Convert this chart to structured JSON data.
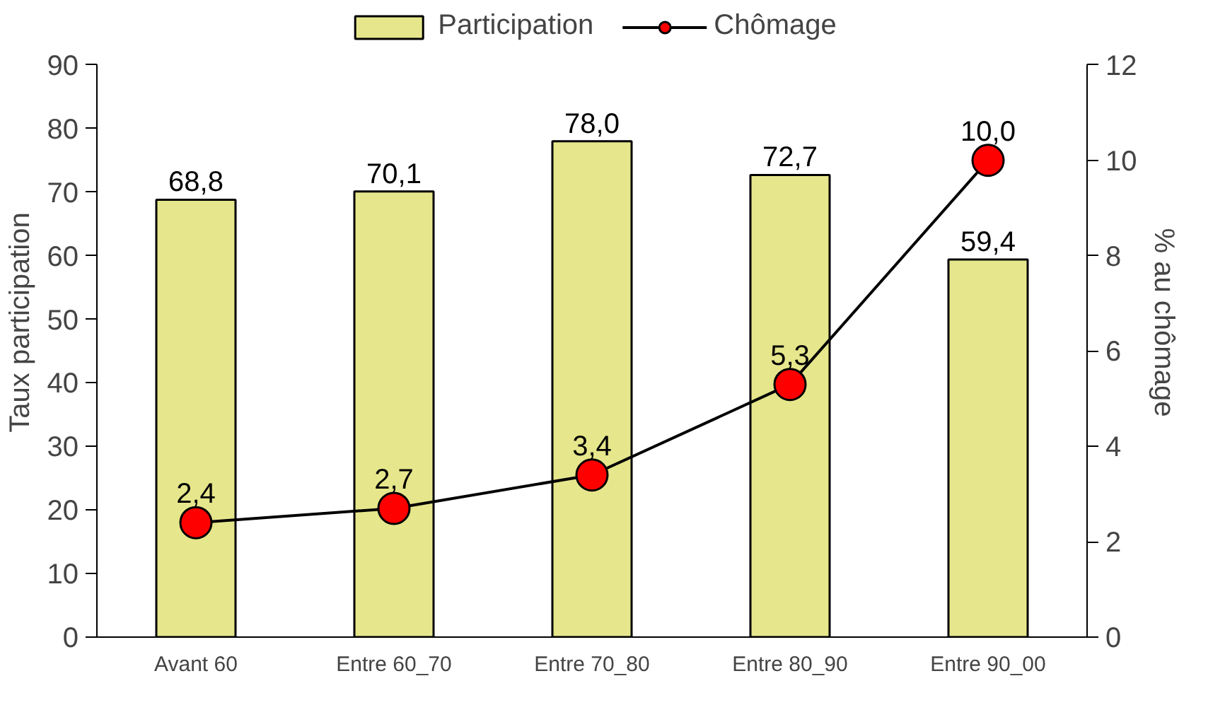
{
  "chart_data": {
    "type": "bar",
    "categories": [
      "Avant 60",
      "Entre 60_70",
      "Entre 70_80",
      "Entre 80_90",
      "Entre 90_00"
    ],
    "ylabel": "Taux participation",
    "y2label": "% au chômage",
    "ylim": [
      0,
      90
    ],
    "yticks": [
      0,
      10,
      20,
      30,
      40,
      50,
      60,
      70,
      80,
      90
    ],
    "y2lim": [
      0,
      12
    ],
    "y2ticks": [
      0,
      2,
      4,
      6,
      8,
      10,
      12
    ],
    "grid": false,
    "legend": "top",
    "marker": "circle",
    "line_style": "solid",
    "series": [
      {
        "name": "Participation",
        "color": "#e6e68c",
        "values": [
          68.8,
          70.1,
          78.0,
          72.7,
          59.4
        ],
        "value_labels": [
          "68,8",
          "70,1",
          "78,0",
          "72,7",
          "59,4"
        ]
      },
      {
        "name": "Chômage",
        "type": "line",
        "axis": "y2",
        "color": "#ff0000",
        "values": [
          2.4,
          2.7,
          3.4,
          5.3,
          10.0
        ],
        "value_labels": [
          "2,4",
          "2,7",
          "3,4",
          "5,3",
          "10,0"
        ]
      }
    ]
  }
}
